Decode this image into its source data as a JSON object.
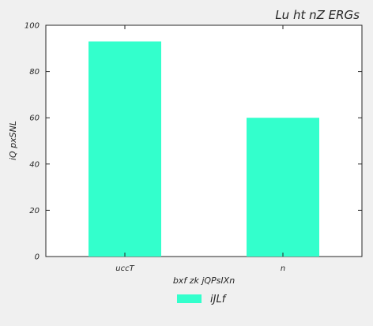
{
  "chart_data": {
    "type": "bar",
    "title": "Lu  ht nZ ERGs",
    "xlabel": "bxf zk jQPsIXn",
    "ylabel": "iQ pxSNL",
    "categories": [
      "uccT",
      "n"
    ],
    "series": [
      {
        "name": "iJLf",
        "values": [
          93,
          60
        ],
        "color": "#33ffcc"
      }
    ],
    "ylim": [
      0,
      100
    ],
    "yticks": [
      0,
      20,
      40,
      60,
      80,
      100
    ],
    "grid": false,
    "legend_position": "bottom-center"
  }
}
